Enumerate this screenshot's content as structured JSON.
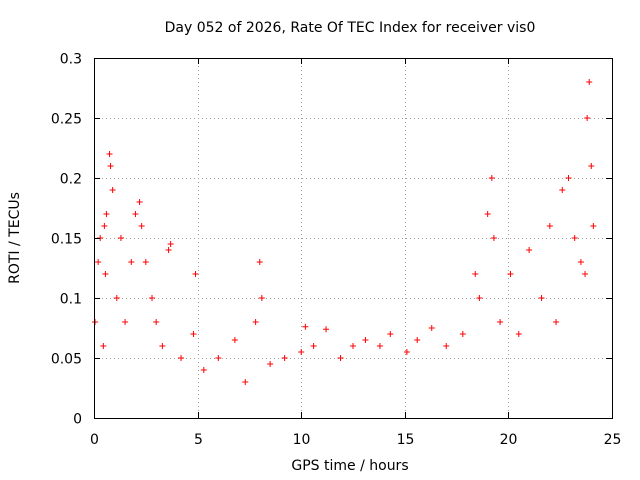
{
  "chart_data": {
    "type": "scatter",
    "title": "Day 052 of 2026, Rate Of TEC Index for receiver vis0",
    "xlabel": "GPS time / hours",
    "ylabel": "ROTI / TECUs",
    "xlim": [
      0,
      25
    ],
    "ylim": [
      0,
      0.3
    ],
    "x_ticks": [
      "0",
      "5",
      "10",
      "15",
      "20",
      "25"
    ],
    "y_ticks": [
      "0",
      "0.05",
      "0.1",
      "0.15",
      "0.2",
      "0.25",
      "0.3"
    ],
    "grid": true,
    "legend": "none",
    "marker": "plus",
    "colors": {
      "series": "#ff0000",
      "grid": "#a0a0a0",
      "axes": "#000000"
    },
    "series": [
      {
        "x": [
          0.05,
          0.2,
          0.3,
          0.45,
          0.5,
          0.55,
          0.6,
          0.75,
          0.8,
          0.9,
          1.1,
          1.3,
          1.5,
          1.8,
          2.0,
          2.2,
          2.3,
          2.5,
          2.8,
          3.0,
          3.3,
          3.6,
          3.7,
          4.2,
          4.8,
          4.9,
          5.3,
          6.0,
          6.8,
          7.3,
          7.8,
          8.0,
          8.1,
          8.5,
          9.2,
          10.0,
          10.2,
          10.6,
          11.2,
          11.9,
          12.5,
          13.1,
          13.8,
          14.3,
          15.1,
          15.6,
          16.3,
          17.0,
          17.8,
          18.4,
          18.6,
          19.0,
          19.2,
          19.3,
          19.6,
          20.1,
          20.5,
          21.0,
          21.6,
          22.0,
          22.3,
          22.6,
          22.9,
          23.2,
          23.5,
          23.7,
          23.8,
          23.9,
          24.0,
          24.1
        ],
        "y": [
          0.08,
          0.13,
          0.15,
          0.06,
          0.16,
          0.12,
          0.17,
          0.22,
          0.21,
          0.19,
          0.1,
          0.15,
          0.08,
          0.13,
          0.17,
          0.18,
          0.16,
          0.13,
          0.1,
          0.08,
          0.06,
          0.14,
          0.145,
          0.05,
          0.07,
          0.12,
          0.04,
          0.05,
          0.065,
          0.03,
          0.08,
          0.13,
          0.1,
          0.045,
          0.05,
          0.055,
          0.076,
          0.06,
          0.074,
          0.05,
          0.06,
          0.065,
          0.06,
          0.07,
          0.055,
          0.065,
          0.075,
          0.06,
          0.07,
          0.12,
          0.1,
          0.17,
          0.2,
          0.15,
          0.08,
          0.12,
          0.07,
          0.14,
          0.1,
          0.16,
          0.08,
          0.19,
          0.2,
          0.15,
          0.13,
          0.12,
          0.25,
          0.28,
          0.21,
          0.16
        ]
      }
    ]
  }
}
